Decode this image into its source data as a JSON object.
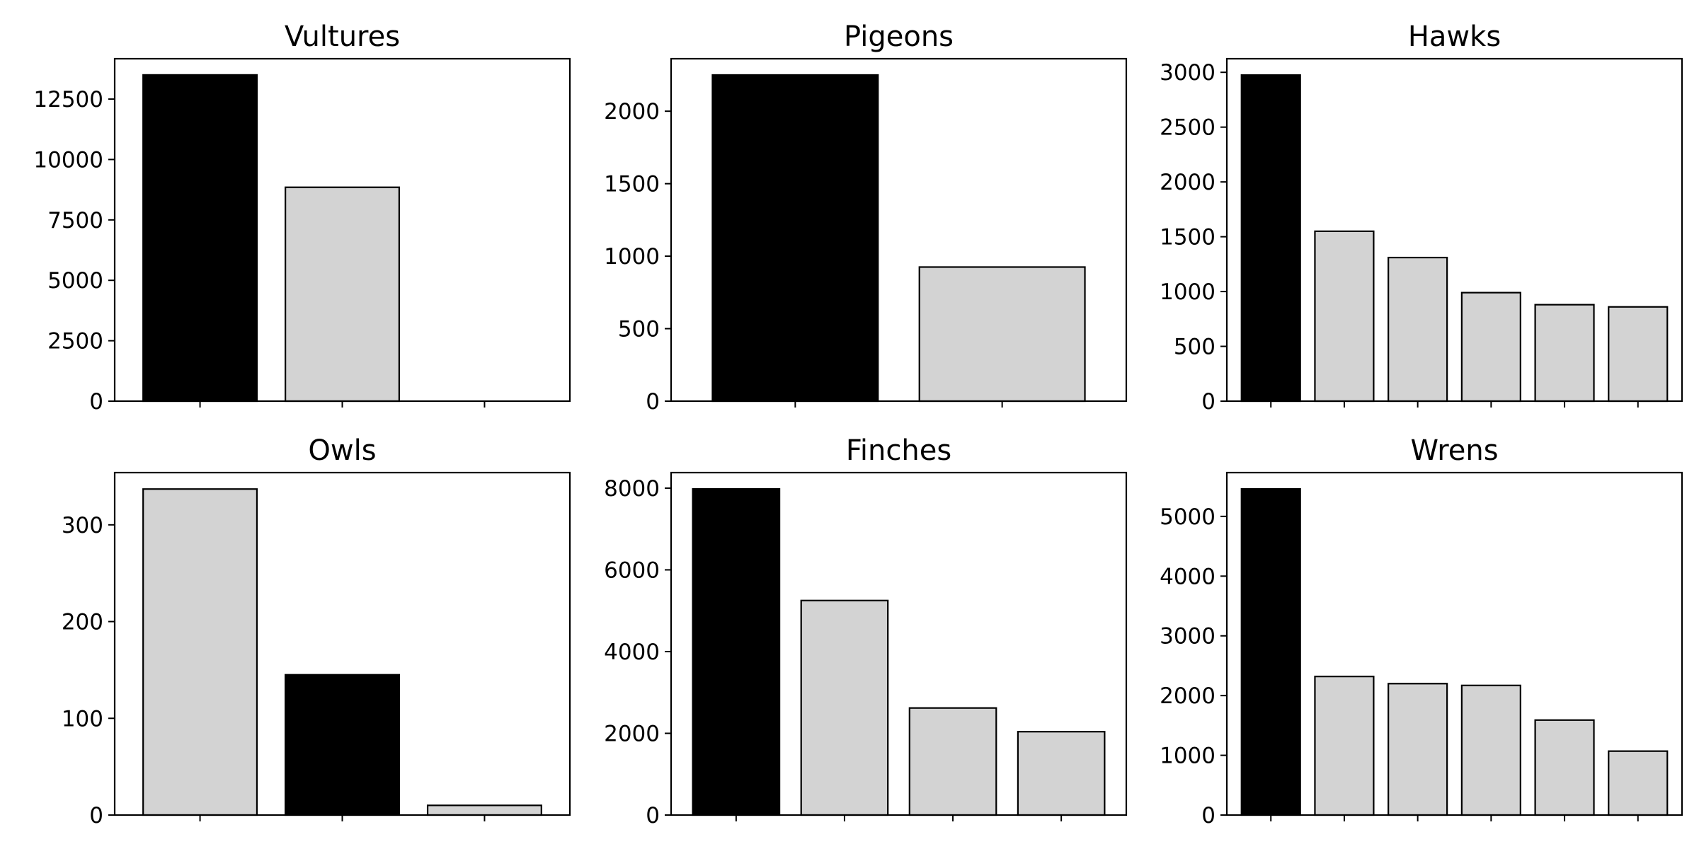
{
  "chart_data": [
    {
      "type": "bar",
      "title": "Vultures",
      "values": [
        13500,
        8850,
        0
      ],
      "highlight": [
        true,
        false,
        false
      ],
      "ylim": [
        0,
        14170
      ],
      "yticks": [
        0,
        2500,
        5000,
        7500,
        10000,
        12500
      ],
      "grid": false
    },
    {
      "type": "bar",
      "title": "Pigeons",
      "values": [
        2250,
        925
      ],
      "highlight": [
        true,
        false
      ],
      "ylim": [
        0,
        2362
      ],
      "yticks": [
        0,
        500,
        1000,
        1500,
        2000
      ],
      "grid": false
    },
    {
      "type": "bar",
      "title": "Hawks",
      "values": [
        2975,
        1550,
        1310,
        990,
        880,
        860
      ],
      "highlight": [
        true,
        false,
        false,
        false,
        false,
        false
      ],
      "ylim": [
        0,
        3124
      ],
      "yticks": [
        0,
        500,
        1000,
        1500,
        2000,
        2500,
        3000
      ],
      "grid": false
    },
    {
      "type": "bar",
      "title": "Owls",
      "values": [
        337,
        145,
        10
      ],
      "highlight": [
        false,
        true,
        false
      ],
      "ylim": [
        0,
        354
      ],
      "yticks": [
        0,
        100,
        200,
        300
      ],
      "grid": false
    },
    {
      "type": "bar",
      "title": "Finches",
      "values": [
        7980,
        5250,
        2620,
        2040
      ],
      "highlight": [
        true,
        false,
        false,
        false
      ],
      "ylim": [
        0,
        8380
      ],
      "yticks": [
        0,
        2000,
        4000,
        6000,
        8000
      ],
      "grid": false
    },
    {
      "type": "bar",
      "title": "Wrens",
      "values": [
        5460,
        2320,
        2200,
        2170,
        1590,
        1070
      ],
      "highlight": [
        true,
        false,
        false,
        false,
        false,
        false
      ],
      "ylim": [
        0,
        5733
      ],
      "yticks": [
        0,
        1000,
        2000,
        3000,
        4000,
        5000
      ],
      "grid": false
    }
  ],
  "colors": {
    "highlight": "#000000",
    "other": "#d3d3d3",
    "edge": "#000000"
  }
}
